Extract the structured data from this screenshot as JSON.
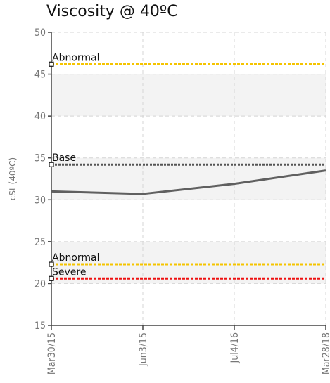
{
  "title": "Viscosity @ 40ºC",
  "colors": {
    "band": "#f3f3f3",
    "grid": "#d4d4d4",
    "series": "#606060",
    "abnormal": "#f5c400",
    "severe": "#ee1111",
    "base": "#555555"
  },
  "chart_data": {
    "type": "line",
    "title": "Viscosity @ 40ºC",
    "ylabel": "cSt (40ºC)",
    "xlabel": "",
    "ylim": [
      15,
      50
    ],
    "yticks": [
      15,
      20,
      25,
      30,
      35,
      40,
      45,
      50
    ],
    "categories": [
      "Mar30/15",
      "Jun3/15",
      "Jul4/16",
      "Mar28/18"
    ],
    "series": [
      {
        "values": [
          31.0,
          30.7,
          31.9,
          33.5
        ]
      }
    ],
    "reference_lines": [
      {
        "label": "Abnormal",
        "value": 46.2,
        "color": "abnormal"
      },
      {
        "label": "Base",
        "value": 34.2,
        "color": "base"
      },
      {
        "label": "Abnormal",
        "value": 22.3,
        "color": "abnormal"
      },
      {
        "label": "Severe",
        "value": 20.6,
        "color": "severe"
      }
    ],
    "bands": [
      [
        20,
        25
      ],
      [
        30,
        35
      ],
      [
        40,
        45
      ]
    ],
    "grid": true
  }
}
